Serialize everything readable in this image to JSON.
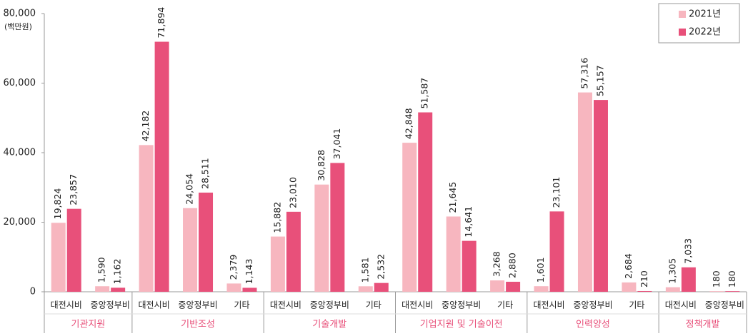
{
  "chart_data": {
    "type": "bar",
    "y_unit": "(백만원)",
    "groups": [
      {
        "name": "기관지원",
        "categories": [
          "대전시비",
          "중앙정부비"
        ]
      },
      {
        "name": "기반조성",
        "categories": [
          "대전시비",
          "중앙정부비",
          "기타"
        ]
      },
      {
        "name": "기술개발",
        "categories": [
          "대전시비",
          "중앙정부비",
          "기타"
        ]
      },
      {
        "name": "기업지원 및 기술이전",
        "categories": [
          "대전시비",
          "중앙정부비",
          "기타"
        ]
      },
      {
        "name": "인력양성",
        "categories": [
          "대전시비",
          "중앙정부비",
          "기타"
        ]
      },
      {
        "name": "정책개발",
        "categories": [
          "대전시비",
          "중앙정부비"
        ]
      }
    ],
    "series": [
      {
        "name": "2021년",
        "color": "#f7b6bf",
        "values": [
          19824,
          1590,
          42182,
          24054,
          2379,
          15882,
          30828,
          1581,
          42848,
          21645,
          3268,
          1601,
          57316,
          2684,
          1305,
          180
        ],
        "value_labels": [
          "19,824",
          "1,590",
          "42,182",
          "24,054",
          "2,379",
          "15,882",
          "30,828",
          "1,581",
          "42,848",
          "21,645",
          "3,268",
          "1,601",
          "57,316",
          "2,684",
          "1,305",
          "180"
        ]
      },
      {
        "name": "2022년",
        "color": "#e8507a",
        "values": [
          23857,
          1162,
          71894,
          28511,
          1143,
          23010,
          37041,
          2532,
          51587,
          14641,
          2880,
          23101,
          55157,
          210,
          7033,
          180
        ],
        "value_labels": [
          "23,857",
          "1,162",
          "71,894",
          "28,511",
          "1,143",
          "23,010",
          "37,041",
          "2,532",
          "51,587",
          "14,641",
          "2,880",
          "23,101",
          "55,157",
          "210",
          "7,033",
          "180"
        ]
      }
    ],
    "ylim": [
      0,
      80000
    ],
    "yticks": [
      0,
      {
        "value": 20000,
        "label": "20,000"
      },
      {
        "value": 40000,
        "label": "40,000"
      },
      {
        "value": 60000,
        "label": "60,000"
      },
      {
        "value": 80000,
        "label": "80,000"
      }
    ],
    "legend": "top-right"
  }
}
